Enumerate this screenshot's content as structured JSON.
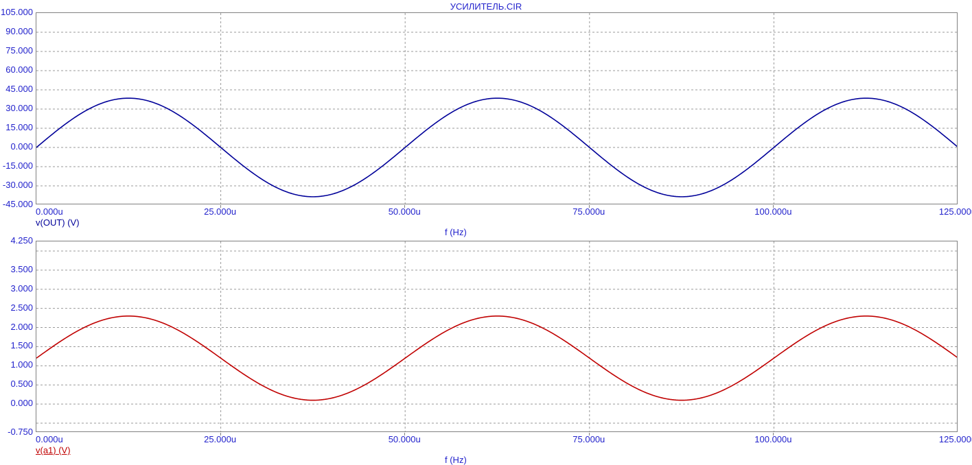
{
  "title": "УСИЛИТЕЛЬ.CIR",
  "colors": {
    "title_text": "#2222cc",
    "axis_text": "#2222cc",
    "frame": "#808080",
    "grid": "#999999",
    "wave_vout": "#000099",
    "wave_va1": "#c00000"
  },
  "chart_data": [
    {
      "type": "line",
      "title": "УСИЛИТЕЛЬ.CIR",
      "series_label": "v(OUT) (V)",
      "xlabel": "f (Hz)",
      "color": "#000099",
      "label_underline": false,
      "xlim_us": [
        0,
        125
      ],
      "ylim": [
        -45,
        105
      ],
      "grid": true,
      "x_tick_labels": [
        "0.000u",
        "25.000u",
        "50.000u",
        "75.000u",
        "100.000u",
        "125.000u"
      ],
      "x_tick_values_us": [
        0,
        25,
        50,
        75,
        100,
        125
      ],
      "y_tick_labels": [
        "105.000",
        "90.000",
        "75.000",
        "60.000",
        "45.000",
        "30.000",
        "15.000",
        "0.000",
        "-15.000",
        "-30.000",
        "-45.000"
      ],
      "y_tick_values": [
        105,
        90,
        75,
        60,
        45,
        30,
        15,
        0,
        -15,
        -30,
        -45
      ],
      "x_grid_us": [
        25,
        50,
        75,
        100
      ],
      "y_grid": [
        90,
        75,
        60,
        45,
        30,
        15,
        0,
        -15,
        -30
      ],
      "waveform": {
        "shape": "sine",
        "offset_v": 0,
        "amplitude_v": 38.5,
        "period_us": 50,
        "phase_deg": 0
      },
      "key_points": {
        "x_us": [
          0,
          12.5,
          25,
          37.5,
          50,
          62.5,
          75,
          87.5,
          100,
          112.5,
          125
        ],
        "y_v": [
          0,
          38.5,
          0,
          -38.5,
          0,
          38.5,
          0,
          -38.5,
          0,
          38.5,
          0
        ]
      }
    },
    {
      "type": "line",
      "title": "",
      "series_label": "v(a1) (V)",
      "xlabel": "f (Hz)",
      "color": "#c00000",
      "label_underline": true,
      "xlim_us": [
        0,
        125
      ],
      "ylim": [
        -0.75,
        4.25
      ],
      "grid": true,
      "x_tick_labels": [
        "0.000u",
        "25.000u",
        "50.000u",
        "75.000u",
        "100.000u",
        "125.000u"
      ],
      "x_tick_values_us": [
        0,
        25,
        50,
        75,
        100,
        125
      ],
      "y_tick_labels": [
        "4.250",
        "3.500",
        "3.000",
        "2.500",
        "2.000",
        "1.500",
        "1.000",
        "0.500",
        "0.000",
        "-0.750"
      ],
      "y_tick_values": [
        4.25,
        3.5,
        3,
        2.5,
        2,
        1.5,
        1,
        0.5,
        0,
        -0.75
      ],
      "x_grid_us": [
        25,
        50,
        75,
        100
      ],
      "y_grid": [
        4,
        3.5,
        3,
        2.5,
        2,
        1.5,
        1,
        0.5,
        0,
        -0.5
      ],
      "waveform": {
        "shape": "sine",
        "offset_v": 1.2,
        "amplitude_v": 1.1,
        "period_us": 50,
        "phase_deg": 0
      },
      "key_points": {
        "x_us": [
          0,
          12.5,
          25,
          37.5,
          50,
          62.5,
          75,
          87.5,
          100,
          112.5,
          125
        ],
        "y_v": [
          1.2,
          2.3,
          1.2,
          0.1,
          1.2,
          2.3,
          1.2,
          0.1,
          1.2,
          2.3,
          1.2
        ]
      }
    }
  ]
}
